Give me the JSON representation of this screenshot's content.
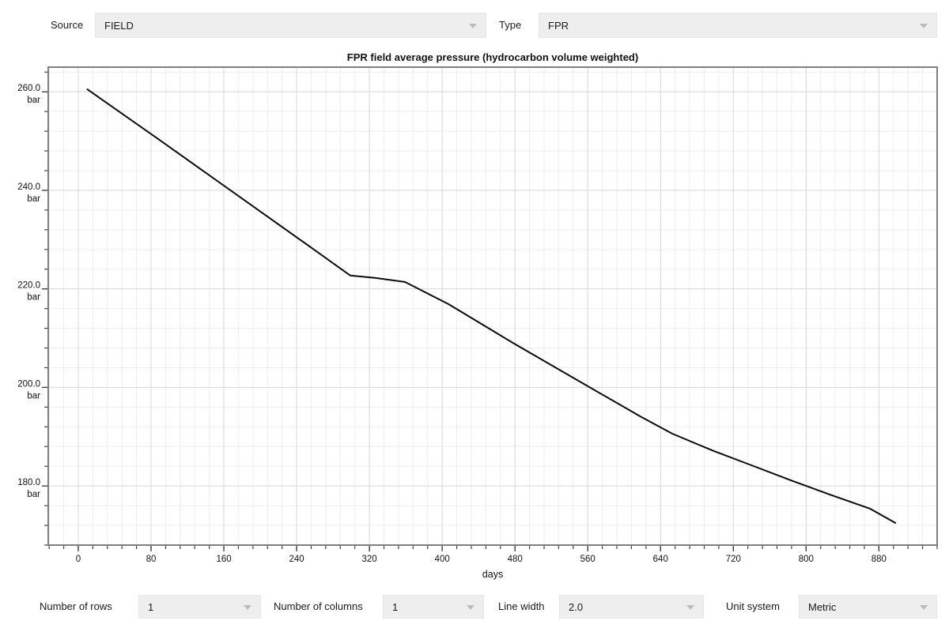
{
  "top_bar": {
    "source": {
      "label": "Source",
      "value": "FIELD"
    },
    "type": {
      "label": "Type",
      "value": "FPR"
    }
  },
  "bottom_bar": {
    "rows": {
      "label": "Number of rows",
      "value": "1"
    },
    "columns": {
      "label": "Number of columns",
      "value": "1"
    },
    "line_width": {
      "label": "Line width",
      "value": "2.0"
    },
    "unit_system": {
      "label": "Unit system",
      "value": "Metric"
    }
  },
  "chart_data": {
    "type": "line",
    "title": "FPR field average pressure (hydrocarbon volume weighted)",
    "xlabel": "days",
    "y_unit": "bar",
    "xlim": [
      -33,
      944
    ],
    "ylim": [
      168,
      265
    ],
    "x_major_ticks": [
      0,
      80,
      160,
      240,
      320,
      400,
      480,
      560,
      640,
      720,
      800,
      880
    ],
    "x_minor_step": 16,
    "y_major_ticks": [
      180,
      200,
      220,
      240,
      260
    ],
    "y_minor_step": 4,
    "grid": "minor+major",
    "legend": "none",
    "series": [
      {
        "name": "FPR",
        "color": "#0a0a0a",
        "width": 2.0,
        "x": [
          10,
          88,
          175,
          262,
          299,
          327,
          359,
          407,
          479,
          551,
          618,
          653,
          697,
          740,
          784,
          827,
          870,
          898
        ],
        "y": [
          260.5,
          250.4,
          239.0,
          227.6,
          222.7,
          222.2,
          221.4,
          216.9,
          208.9,
          201.2,
          194.1,
          190.6,
          187.2,
          184.2,
          181.1,
          178.2,
          175.4,
          172.5
        ]
      }
    ]
  },
  "colors": {
    "dropdown_bg": "#eeeeee",
    "dropdown_arrow": "#bcbcbc",
    "plot_frame": "#7f7f7f",
    "grid_minor": "#ededed",
    "grid_major": "#d9d9d9",
    "tick": "#444444",
    "line": "#0a0a0a"
  }
}
